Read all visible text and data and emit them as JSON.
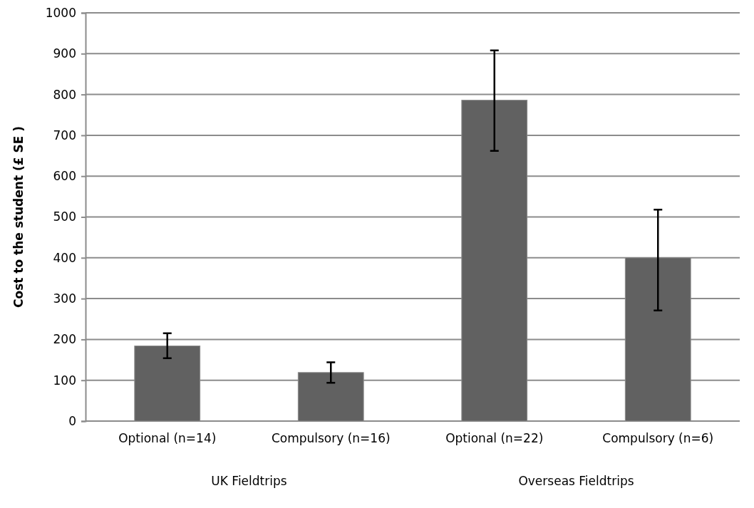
{
  "chart_data": {
    "type": "bar",
    "ylabel": "Cost to the student (£ SE )",
    "categories": [
      "Optional (n=14)",
      "Compulsory (n=16)",
      "Optional (n=22)",
      "Compulsory (n=6)"
    ],
    "values": [
      184,
      119,
      786,
      400
    ],
    "errors": [
      [
        154,
        215
      ],
      [
        94,
        144
      ],
      [
        662,
        908
      ],
      [
        271,
        518
      ]
    ],
    "color": "#616161",
    "ylim": [
      0,
      1000
    ],
    "yticks": [
      0,
      100,
      200,
      300,
      400,
      500,
      600,
      700,
      800,
      900,
      1000
    ],
    "grid": "y",
    "annotations": [
      "UK Fieldtrips",
      "Overseas Fieldtrips"
    ]
  }
}
